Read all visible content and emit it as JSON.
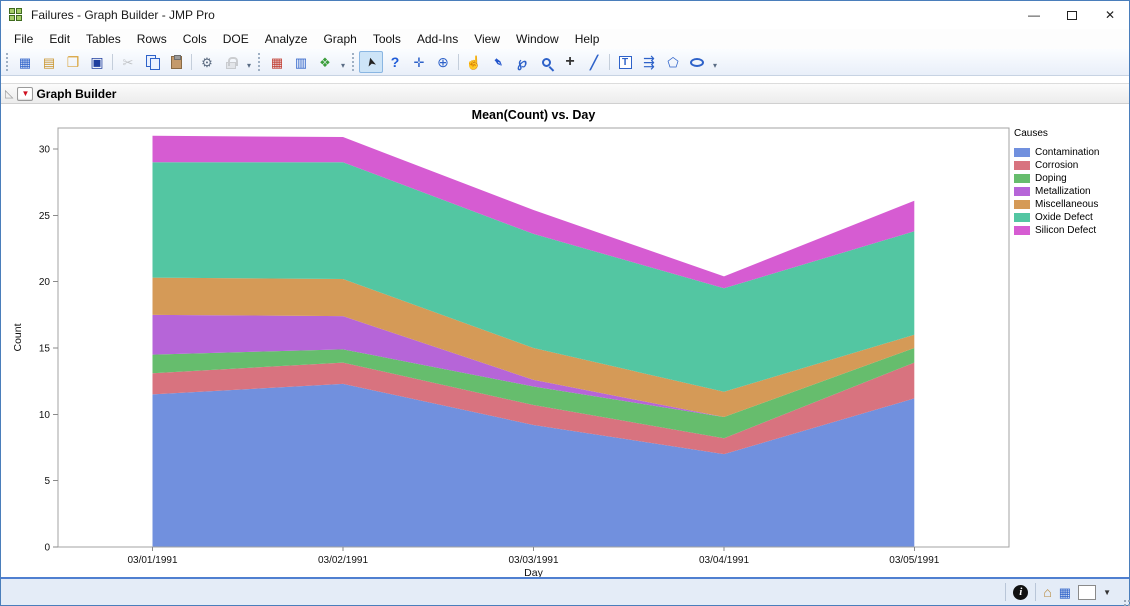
{
  "window": {
    "title": "Failures - Graph Builder - JMP Pro",
    "app_icon": "jmp-window-icon",
    "controls": {
      "minimize": "—",
      "maximize": "",
      "close": "✕"
    }
  },
  "menubar": {
    "items": [
      "File",
      "Edit",
      "Tables",
      "Rows",
      "Cols",
      "DOE",
      "Analyze",
      "Graph",
      "Tools",
      "Add-Ins",
      "View",
      "Window",
      "Help"
    ]
  },
  "toolbar": {
    "groups": [
      {
        "subgroups": [
          [
            {
              "name": "new-data-table"
            },
            {
              "name": "new-journal"
            },
            {
              "name": "open-file"
            },
            {
              "name": "save-file"
            }
          ],
          [
            {
              "name": "cut",
              "disabled": true
            },
            {
              "name": "copy"
            },
            {
              "name": "paste"
            }
          ],
          [
            {
              "name": "preferences"
            },
            {
              "name": "lock",
              "disabled": true
            }
          ]
        ]
      },
      {
        "subgroups": [
          [
            {
              "name": "data-table-window"
            },
            {
              "name": "columns-viewer"
            },
            {
              "name": "new-graph"
            }
          ]
        ]
      },
      {
        "subgroups": [
          [
            {
              "name": "cursor-tool",
              "selected": true
            },
            {
              "name": "help-tool"
            },
            {
              "name": "crosshair-tool"
            },
            {
              "name": "target-tool"
            }
          ],
          [
            {
              "name": "grabber-tool"
            },
            {
              "name": "brush-tool"
            },
            {
              "name": "lasso-tool"
            },
            {
              "name": "magnifier-tool"
            },
            {
              "name": "plus-tool"
            },
            {
              "name": "pencil-tool"
            }
          ],
          [
            {
              "name": "text-annotation-tool"
            },
            {
              "name": "lines-annotation-tool"
            },
            {
              "name": "polygon-annotation-tool"
            },
            {
              "name": "oval-annotation-tool"
            }
          ]
        ]
      }
    ]
  },
  "report": {
    "header": {
      "title": "Graph Builder",
      "collapse_icon": "collapse-triangle-icon",
      "menu_icon": "red-triangle-menu-icon"
    }
  },
  "chart_data": {
    "type": "area",
    "stacked": true,
    "title": "Mean(Count) vs. Day",
    "xlabel": "Day",
    "ylabel": "Count",
    "categories": [
      "03/01/1991",
      "03/02/1991",
      "03/03/1991",
      "03/04/1991",
      "03/05/1991"
    ],
    "ylim": [
      0,
      31.6
    ],
    "yticks": [
      0,
      5,
      10,
      15,
      20,
      25,
      30
    ],
    "grid": false,
    "legend_title": "Causes",
    "legend_position": "right",
    "series": [
      {
        "name": "Contamination",
        "color": "#7190de",
        "values": [
          11.5,
          12.3,
          9.2,
          7.0,
          11.2
        ]
      },
      {
        "name": "Corrosion",
        "color": "#d8737f",
        "values": [
          1.6,
          1.6,
          1.5,
          1.2,
          2.7
        ]
      },
      {
        "name": "Doping",
        "color": "#66bd6d",
        "values": [
          1.4,
          1.0,
          1.4,
          1.6,
          1.1
        ]
      },
      {
        "name": "Metallization",
        "color": "#b665d8",
        "values": [
          3.0,
          2.5,
          0.5,
          0.0,
          0.0
        ]
      },
      {
        "name": "Miscellaneous",
        "color": "#d59a57",
        "values": [
          2.8,
          2.8,
          2.4,
          1.9,
          1.0
        ]
      },
      {
        "name": "Oxide Defect",
        "color": "#53c6a2",
        "values": [
          8.7,
          8.8,
          8.6,
          7.8,
          7.8
        ]
      },
      {
        "name": "Silicon Defect",
        "color": "#d65cd2",
        "values": [
          2.0,
          1.9,
          1.8,
          0.9,
          2.3
        ]
      }
    ]
  },
  "statusbar": {
    "icons": [
      "info-button",
      "home-button",
      "data-table-button",
      "color-well",
      "dropdown-arrow"
    ]
  }
}
